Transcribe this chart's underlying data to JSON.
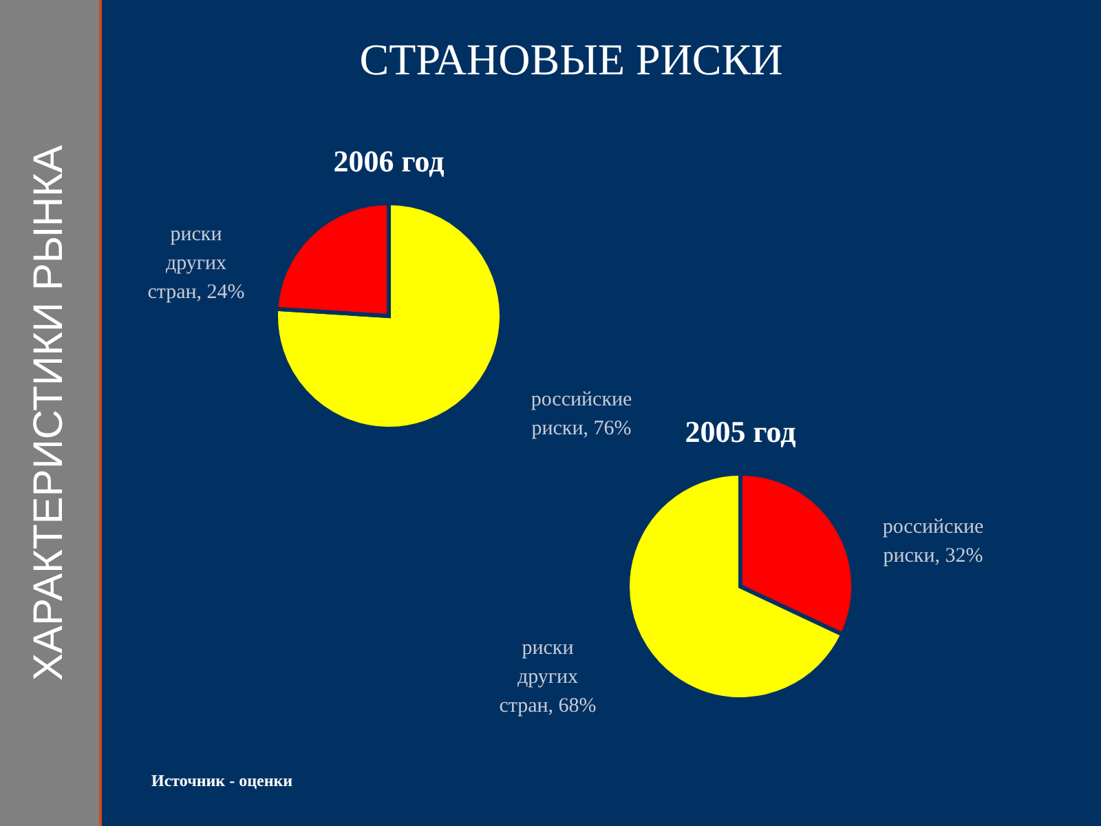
{
  "chart_data": [
    {
      "type": "other",
      "title": "СТРАНОВЫЕ РИСКИ",
      "annotations": [
        "ХАРАКТЕРИСТИКИ РЫНКА",
        "Источник - оценки"
      ]
    },
    {
      "type": "pie",
      "title": "2006 год",
      "categories": [
        "российские риски, 76%",
        "риски других стран, 24%"
      ],
      "values": [
        76,
        24
      ],
      "colors": [
        "#ffff00",
        "#ff0000"
      ]
    },
    {
      "type": "pie",
      "title": "2005 год",
      "categories": [
        "российские риски, 32%",
        "риски других стран, 68%"
      ],
      "values": [
        32,
        68
      ],
      "colors": [
        "#ff0000",
        "#ffff00"
      ]
    }
  ]
}
